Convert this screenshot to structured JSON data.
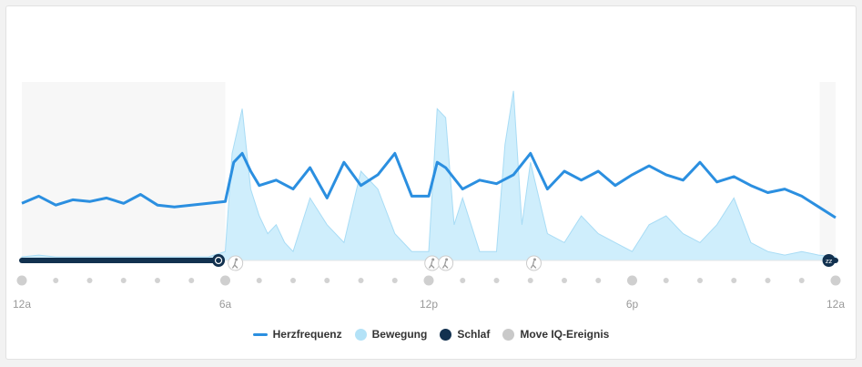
{
  "chart_data": {
    "type": "line",
    "x_ticks": [
      "12a",
      "6a",
      "12p",
      "6p",
      "12a"
    ],
    "x_range_hours": [
      0,
      24
    ],
    "legend": [
      {
        "key": "herzfrequenz",
        "label": "Herzfrequenz",
        "color": "#2b8fe0",
        "swatch": "line"
      },
      {
        "key": "bewegung",
        "label": "Bewegung",
        "color": "#b3e2f7",
        "swatch": "dot"
      },
      {
        "key": "schlaf",
        "label": "Schlaf",
        "color": "#12314f",
        "swatch": "dot"
      },
      {
        "key": "moveiq",
        "label": "Move IQ-Ereignis",
        "color": "#c9c9c9",
        "swatch": "dot"
      }
    ],
    "series": [
      {
        "name": "Herzfrequenz",
        "x": [
          0,
          0.5,
          1,
          1.5,
          2,
          2.5,
          3,
          3.5,
          4,
          4.5,
          5,
          5.5,
          6,
          6.25,
          6.5,
          6.75,
          7,
          7.5,
          8,
          8.5,
          9,
          9.5,
          10,
          10.5,
          11,
          11.5,
          12,
          12.25,
          12.5,
          13,
          13.5,
          14,
          14.5,
          15,
          15.5,
          16,
          16.5,
          17,
          17.5,
          18,
          18.5,
          19,
          19.5,
          20,
          20.5,
          21,
          21.5,
          22,
          22.5,
          23,
          23.5,
          24
        ],
        "values": [
          0.32,
          0.36,
          0.31,
          0.34,
          0.33,
          0.35,
          0.32,
          0.37,
          0.31,
          0.3,
          0.31,
          0.32,
          0.33,
          0.55,
          0.6,
          0.5,
          0.42,
          0.45,
          0.4,
          0.52,
          0.35,
          0.55,
          0.42,
          0.48,
          0.6,
          0.36,
          0.36,
          0.55,
          0.52,
          0.4,
          0.45,
          0.43,
          0.48,
          0.6,
          0.4,
          0.5,
          0.45,
          0.5,
          0.42,
          0.48,
          0.53,
          0.48,
          0.45,
          0.55,
          0.44,
          0.47,
          0.42,
          0.38,
          0.4,
          0.36,
          0.3,
          0.24
        ]
      },
      {
        "name": "Bewegung",
        "x": [
          0,
          0.5,
          1,
          1.5,
          2,
          2.5,
          3,
          3.5,
          4,
          4.5,
          5,
          5.5,
          6,
          6.2,
          6.5,
          6.75,
          7,
          7.25,
          7.5,
          7.75,
          8,
          8.5,
          9,
          9.5,
          10,
          10.5,
          11,
          11.5,
          12,
          12.25,
          12.5,
          12.75,
          13,
          13.5,
          14,
          14.25,
          14.5,
          14.75,
          15,
          15.5,
          16,
          16.5,
          17,
          17.5,
          18,
          18.5,
          19,
          19.5,
          20,
          20.5,
          21,
          21.5,
          22,
          22.5,
          23,
          23.5,
          24
        ],
        "values": [
          0.02,
          0.03,
          0.02,
          0.02,
          0.02,
          0.02,
          0.02,
          0.02,
          0.02,
          0.02,
          0.02,
          0.02,
          0.05,
          0.6,
          0.85,
          0.4,
          0.25,
          0.15,
          0.2,
          0.1,
          0.05,
          0.35,
          0.2,
          0.1,
          0.5,
          0.4,
          0.15,
          0.05,
          0.05,
          0.85,
          0.8,
          0.2,
          0.35,
          0.05,
          0.05,
          0.65,
          0.95,
          0.2,
          0.55,
          0.15,
          0.1,
          0.25,
          0.15,
          0.1,
          0.05,
          0.2,
          0.25,
          0.15,
          0.1,
          0.2,
          0.35,
          0.1,
          0.05,
          0.03,
          0.05,
          0.03,
          0.02
        ]
      }
    ],
    "sleep_intervals": [
      [
        0,
        5.8
      ],
      [
        23.8,
        24
      ]
    ],
    "move_iq_hours": [
      6.3,
      12.1,
      12.5,
      15.1
    ]
  }
}
